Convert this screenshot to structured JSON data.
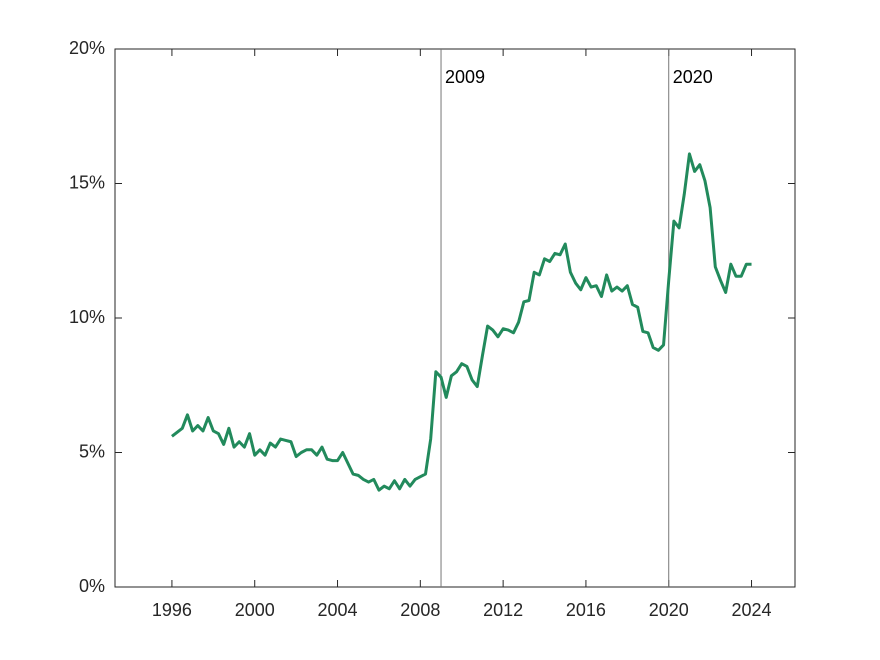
{
  "chart_data": {
    "type": "line",
    "x": [
      1996,
      1996.25,
      1996.5,
      1996.75,
      1997,
      1997.25,
      1997.5,
      1997.75,
      1998,
      1998.25,
      1998.5,
      1998.75,
      1999,
      1999.25,
      1999.5,
      1999.75,
      2000,
      2000.25,
      2000.5,
      2000.75,
      2001,
      2001.25,
      2001.5,
      2001.75,
      2002,
      2002.25,
      2002.5,
      2002.75,
      2003,
      2003.25,
      2003.5,
      2003.75,
      2004,
      2004.25,
      2004.5,
      2004.75,
      2005,
      2005.25,
      2005.5,
      2005.75,
      2006,
      2006.25,
      2006.5,
      2006.75,
      2007,
      2007.25,
      2007.5,
      2007.75,
      2008,
      2008.25,
      2008.5,
      2008.75,
      2009,
      2009.25,
      2009.5,
      2009.75,
      2010,
      2010.25,
      2010.5,
      2010.75,
      2011,
      2011.25,
      2011.5,
      2011.75,
      2012,
      2012.25,
      2012.5,
      2012.75,
      2013,
      2013.25,
      2013.5,
      2013.75,
      2014,
      2014.25,
      2014.5,
      2014.75,
      2015,
      2015.25,
      2015.5,
      2015.75,
      2016,
      2016.25,
      2016.5,
      2016.75,
      2017,
      2017.25,
      2017.5,
      2017.75,
      2018,
      2018.25,
      2018.5,
      2018.75,
      2019,
      2019.25,
      2019.5,
      2019.75,
      2020,
      2020.25,
      2020.5,
      2020.75,
      2021,
      2021.25,
      2021.5,
      2021.75,
      2022,
      2022.25,
      2022.5,
      2022.75,
      2023,
      2023.25,
      2023.5,
      2023.75,
      2024
    ],
    "series": [
      {
        "color": "#228a5c",
        "values": [
          5.6,
          5.75,
          5.9,
          6.4,
          5.8,
          6.0,
          5.8,
          6.3,
          5.8,
          5.7,
          5.3,
          5.9,
          5.2,
          5.4,
          5.2,
          5.7,
          4.9,
          5.1,
          4.9,
          5.35,
          5.2,
          5.5,
          5.45,
          5.4,
          4.85,
          5.0,
          5.1,
          5.1,
          4.9,
          5.2,
          4.75,
          4.7,
          4.7,
          5.0,
          4.6,
          4.2,
          4.15,
          4.0,
          3.9,
          4.0,
          3.6,
          3.75,
          3.65,
          3.95,
          3.65,
          4.0,
          3.75,
          4.0,
          4.1,
          4.2,
          5.5,
          8.0,
          7.8,
          7.05,
          7.85,
          8.0,
          8.3,
          8.2,
          7.7,
          7.45,
          8.6,
          9.7,
          9.55,
          9.3,
          9.6,
          9.55,
          9.45,
          9.85,
          10.6,
          10.65,
          11.7,
          11.6,
          12.2,
          12.1,
          12.4,
          12.35,
          12.75,
          11.7,
          11.3,
          11.05,
          11.5,
          11.15,
          11.2,
          10.8,
          11.6,
          11.0,
          11.15,
          11.0,
          11.2,
          10.5,
          10.4,
          9.5,
          9.45,
          8.9,
          8.8,
          9.0,
          11.4,
          13.6,
          13.35,
          14.6,
          16.1,
          15.45,
          15.7,
          15.1,
          14.1,
          11.9,
          11.4,
          10.95,
          12.0,
          11.55,
          11.55,
          12.0,
          12.0
        ]
      }
    ],
    "xlim": [
      1993.25,
      2026.1
    ],
    "xticks": [
      1996,
      2000,
      2004,
      2008,
      2012,
      2016,
      2020,
      2024
    ],
    "ylim": [
      0,
      20
    ],
    "yticks": [
      {
        "value": 0,
        "label": "0%"
      },
      {
        "value": 5,
        "label": "5%"
      },
      {
        "value": 10,
        "label": "10%"
      },
      {
        "value": 15,
        "label": "15%"
      },
      {
        "value": 20,
        "label": "20%"
      }
    ],
    "annotations": [
      {
        "x": 2009,
        "label": "2009"
      },
      {
        "x": 2020,
        "label": "2020"
      }
    ]
  }
}
